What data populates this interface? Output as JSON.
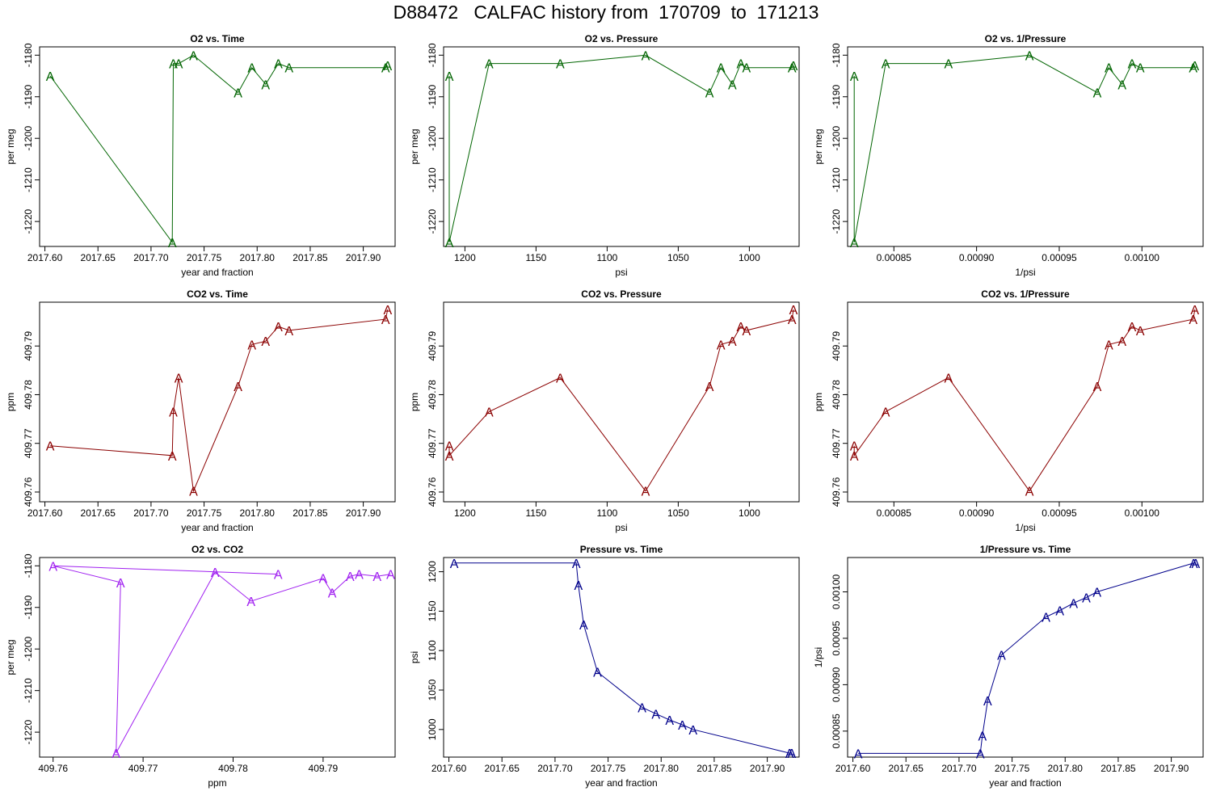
{
  "page": {
    "title": "D88472   CALFAC history from  170709  to  171213"
  },
  "chart_data": [
    {
      "type": "line",
      "title": "O2 vs. Time",
      "xlabel": "year and fraction",
      "ylabel": "per meg",
      "color": "#006400",
      "marker": "A",
      "xlim": [
        2017.595,
        2017.93
      ],
      "ylim": [
        -1226,
        -1178
      ],
      "xticks": [
        2017.6,
        2017.65,
        2017.7,
        2017.75,
        2017.8,
        2017.85,
        2017.9
      ],
      "xtick_labels": [
        "2017.60",
        "2017.65",
        "2017.70",
        "2017.75",
        "2017.80",
        "2017.85",
        "2017.90"
      ],
      "yticks": [
        -1220,
        -1210,
        -1200,
        -1190,
        -1180
      ],
      "ytick_labels": [
        "-1220",
        "-1210",
        "-1200",
        "-1190",
        "-1180"
      ],
      "x": [
        2017.605,
        2017.72,
        2017.721,
        2017.726,
        2017.74,
        2017.782,
        2017.795,
        2017.808,
        2017.82,
        2017.83,
        2017.921,
        2017.923
      ],
      "y": [
        -1185,
        -1225,
        -1182,
        -1182,
        -1180,
        -1189,
        -1183,
        -1187,
        -1182,
        -1183,
        -1183,
        -1182.5
      ]
    },
    {
      "type": "line",
      "title": "O2 vs. Pressure",
      "xlabel": "psi",
      "ylabel": "per meg",
      "color": "#006400",
      "marker": "A",
      "xlim": [
        1215,
        965
      ],
      "ylim": [
        -1226,
        -1178
      ],
      "xticks": [
        1200,
        1150,
        1100,
        1050,
        1000
      ],
      "xtick_labels": [
        "1200",
        "1150",
        "1100",
        "1050",
        "1000"
      ],
      "yticks": [
        -1220,
        -1210,
        -1200,
        -1190,
        -1180
      ],
      "ytick_labels": [
        "-1220",
        "-1210",
        "-1200",
        "-1190",
        "-1180"
      ],
      "x": [
        1211,
        1211,
        1183,
        1133,
        1073,
        1028,
        1020,
        1012,
        1006,
        1002,
        970,
        969
      ],
      "y": [
        -1185,
        -1225,
        -1182,
        -1182,
        -1180,
        -1189,
        -1183,
        -1187,
        -1182,
        -1183,
        -1183,
        -1182.5
      ]
    },
    {
      "type": "line",
      "title": "O2 vs. 1/Pressure",
      "xlabel": "1/psi",
      "ylabel": "per meg",
      "color": "#006400",
      "marker": "A",
      "xlim": [
        0.000822,
        0.001037
      ],
      "ylim": [
        -1226,
        -1178
      ],
      "xticks": [
        0.00085,
        0.0009,
        0.00095,
        0.001
      ],
      "xtick_labels": [
        "0.00085",
        "0.00090",
        "0.00095",
        "0.00100"
      ],
      "yticks": [
        -1220,
        -1210,
        -1200,
        -1190,
        -1180
      ],
      "ytick_labels": [
        "-1220",
        "-1210",
        "-1200",
        "-1190",
        "-1180"
      ],
      "x": [
        0.000826,
        0.000826,
        0.000845,
        0.000883,
        0.000932,
        0.000973,
        0.00098,
        0.000988,
        0.000994,
        0.000999,
        0.001031,
        0.001032
      ],
      "y": [
        -1185,
        -1225,
        -1182,
        -1182,
        -1180,
        -1189,
        -1183,
        -1187,
        -1182,
        -1183,
        -1183,
        -1182.5
      ]
    },
    {
      "type": "line",
      "title": "CO2 vs. Time",
      "xlabel": "year and fraction",
      "ylabel": "ppm",
      "color": "#8b0000",
      "marker": "A",
      "xlim": [
        2017.595,
        2017.93
      ],
      "ylim": [
        409.758,
        409.799
      ],
      "xticks": [
        2017.6,
        2017.65,
        2017.7,
        2017.75,
        2017.8,
        2017.85,
        2017.9
      ],
      "xtick_labels": [
        "2017.60",
        "2017.65",
        "2017.70",
        "2017.75",
        "2017.80",
        "2017.85",
        "2017.90"
      ],
      "yticks": [
        409.76,
        409.77,
        409.78,
        409.79
      ],
      "ytick_labels": [
        "409.76",
        "409.77",
        "409.78",
        "409.79"
      ],
      "x": [
        2017.605,
        2017.72,
        2017.721,
        2017.726,
        2017.74,
        2017.782,
        2017.795,
        2017.808,
        2017.82,
        2017.83,
        2017.921,
        2017.923
      ],
      "y": [
        409.7695,
        409.7675,
        409.7765,
        409.7835,
        409.7602,
        409.7817,
        409.7903,
        409.791,
        409.794,
        409.7932,
        409.7955,
        409.7975
      ]
    },
    {
      "type": "line",
      "title": "CO2 vs. Pressure",
      "xlabel": "psi",
      "ylabel": "ppm",
      "color": "#8b0000",
      "marker": "A",
      "xlim": [
        1215,
        965
      ],
      "ylim": [
        409.758,
        409.799
      ],
      "xticks": [
        1200,
        1150,
        1100,
        1050,
        1000
      ],
      "xtick_labels": [
        "1200",
        "1150",
        "1100",
        "1050",
        "1000"
      ],
      "yticks": [
        409.76,
        409.77,
        409.78,
        409.79
      ],
      "ytick_labels": [
        "409.76",
        "409.77",
        "409.78",
        "409.79"
      ],
      "x": [
        1211,
        1211,
        1183,
        1133,
        1073,
        1028,
        1020,
        1012,
        1006,
        1002,
        970,
        969
      ],
      "y": [
        409.7695,
        409.7675,
        409.7765,
        409.7835,
        409.7602,
        409.7817,
        409.7903,
        409.791,
        409.794,
        409.7932,
        409.7955,
        409.7975
      ]
    },
    {
      "type": "line",
      "title": "CO2 vs. 1/Pressure",
      "xlabel": "1/psi",
      "ylabel": "ppm",
      "color": "#8b0000",
      "marker": "A",
      "xlim": [
        0.000822,
        0.001037
      ],
      "ylim": [
        409.758,
        409.799
      ],
      "xticks": [
        0.00085,
        0.0009,
        0.00095,
        0.001
      ],
      "xtick_labels": [
        "0.00085",
        "0.00090",
        "0.00095",
        "0.00100"
      ],
      "yticks": [
        409.76,
        409.77,
        409.78,
        409.79
      ],
      "ytick_labels": [
        "409.76",
        "409.77",
        "409.78",
        "409.79"
      ],
      "x": [
        0.000826,
        0.000826,
        0.000845,
        0.000883,
        0.000932,
        0.000973,
        0.00098,
        0.000988,
        0.000994,
        0.000999,
        0.001031,
        0.001032
      ],
      "y": [
        409.7695,
        409.7675,
        409.7765,
        409.7835,
        409.7602,
        409.7817,
        409.7903,
        409.791,
        409.794,
        409.7932,
        409.7955,
        409.7975
      ]
    },
    {
      "type": "line",
      "title": "O2 vs. CO2",
      "xlabel": "ppm",
      "ylabel": "per meg",
      "color": "#a020f0",
      "marker": "A",
      "xlim": [
        409.7585,
        409.798
      ],
      "ylim": [
        -1226,
        -1178
      ],
      "xticks": [
        409.76,
        409.77,
        409.78,
        409.79
      ],
      "xtick_labels": [
        "409.76",
        "409.77",
        "409.78",
        "409.79"
      ],
      "yticks": [
        -1220,
        -1210,
        -1200,
        -1190,
        -1180
      ],
      "ytick_labels": [
        "-1220",
        "-1210",
        "-1200",
        "-1190",
        "-1180"
      ],
      "x": [
        409.785,
        409.76,
        409.7675,
        409.767,
        409.778,
        409.782,
        409.79,
        409.791,
        409.793,
        409.794,
        409.796,
        409.7975
      ],
      "y": [
        -1182,
        -1180,
        -1184,
        -1225,
        -1181.5,
        -1188.5,
        -1183,
        -1186.5,
        -1182.5,
        -1182,
        -1182.5,
        -1182
      ]
    },
    {
      "type": "line",
      "title": "Pressure vs. Time",
      "xlabel": "year and fraction",
      "ylabel": "psi",
      "color": "#00008b",
      "marker": "A",
      "xlim": [
        2017.595,
        2017.93
      ],
      "ylim": [
        965,
        1218
      ],
      "xticks": [
        2017.6,
        2017.65,
        2017.7,
        2017.75,
        2017.8,
        2017.85,
        2017.9
      ],
      "xtick_labels": [
        "2017.60",
        "2017.65",
        "2017.70",
        "2017.75",
        "2017.80",
        "2017.85",
        "2017.90"
      ],
      "yticks": [
        1000,
        1050,
        1100,
        1150,
        1200
      ],
      "ytick_labels": [
        "1000",
        "1050",
        "1100",
        "1150",
        "1200"
      ],
      "x": [
        2017.605,
        2017.72,
        2017.722,
        2017.727,
        2017.74,
        2017.782,
        2017.795,
        2017.808,
        2017.82,
        2017.83,
        2017.921,
        2017.923
      ],
      "y": [
        1211,
        1211,
        1183,
        1133,
        1073,
        1028,
        1020,
        1012,
        1006,
        1000,
        970,
        970
      ]
    },
    {
      "type": "line",
      "title": "1/Pressure vs. Time",
      "xlabel": "year and fraction",
      "ylabel": "1/psi",
      "color": "#00008b",
      "marker": "A",
      "xlim": [
        2017.595,
        2017.93
      ],
      "ylim": [
        0.000822,
        0.001037
      ],
      "xticks": [
        2017.6,
        2017.65,
        2017.7,
        2017.75,
        2017.8,
        2017.85,
        2017.9
      ],
      "xtick_labels": [
        "2017.60",
        "2017.65",
        "2017.70",
        "2017.75",
        "2017.80",
        "2017.85",
        "2017.90"
      ],
      "yticks": [
        0.00085,
        0.0009,
        0.00095,
        0.001
      ],
      "ytick_labels": [
        "0.00085",
        "0.00090",
        "0.00095",
        "0.00100"
      ],
      "x": [
        2017.605,
        2017.72,
        2017.722,
        2017.727,
        2017.74,
        2017.782,
        2017.795,
        2017.808,
        2017.82,
        2017.83,
        2017.921,
        2017.923
      ],
      "y": [
        0.000826,
        0.000826,
        0.000845,
        0.000883,
        0.000932,
        0.000973,
        0.00098,
        0.000988,
        0.000994,
        0.001,
        0.001031,
        0.001031
      ]
    }
  ]
}
